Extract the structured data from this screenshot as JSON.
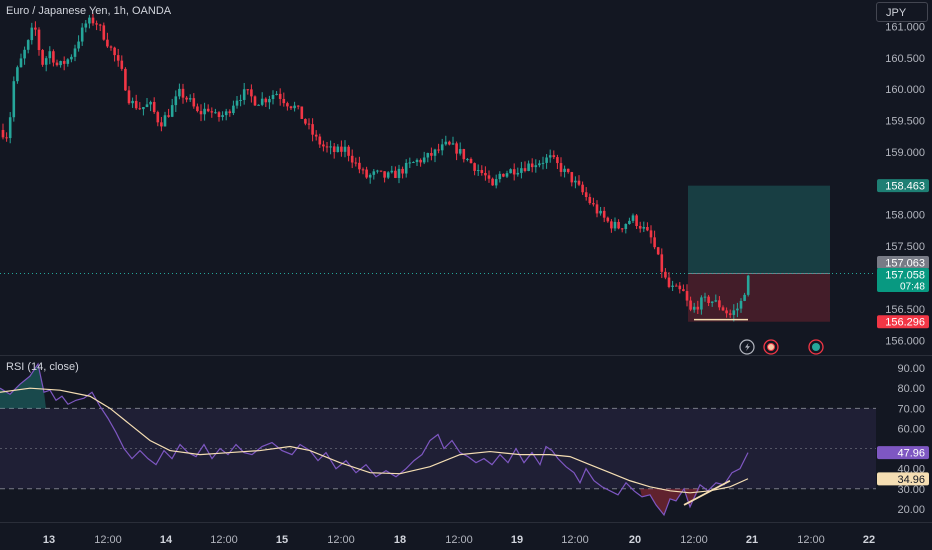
{
  "header": {
    "symbol_title": "Euro / Japanese Yen, 1h, OANDA",
    "currency": "JPY"
  },
  "rsi_panel": {
    "title": "RSI (14, close)"
  },
  "colors": {
    "background": "#131722",
    "up": "#26a69a",
    "down": "#f23645",
    "rsi_line": "#7e57c2",
    "rsi_ma": "#f5deb3",
    "grid_text": "#b2b5be"
  },
  "chart_data": [
    {
      "type": "candlestick",
      "title": "Euro / Japanese Yen, 1h, OANDA",
      "ylim": [
        155.75,
        161.42
      ],
      "y_ticks": [
        "161.000",
        "160.500",
        "160.000",
        "159.500",
        "159.000",
        "158.000",
        "157.500",
        "156.500",
        "156.000"
      ],
      "x_ticks": [
        "13",
        "12:00",
        "14",
        "12:00",
        "15",
        "12:00",
        "18",
        "12:00",
        "19",
        "12:00",
        "20",
        "12:00",
        "21",
        "12:00",
        "22"
      ],
      "anchors": [
        [
          0,
          159.35
        ],
        [
          8,
          159.25
        ],
        [
          14,
          160.15
        ],
        [
          22,
          160.5
        ],
        [
          30,
          160.8
        ],
        [
          34,
          161.05
        ],
        [
          42,
          160.4
        ],
        [
          50,
          160.6
        ],
        [
          58,
          160.35
        ],
        [
          70,
          160.5
        ],
        [
          80,
          160.85
        ],
        [
          86,
          161.05
        ],
        [
          95,
          161.1
        ],
        [
          104,
          160.85
        ],
        [
          114,
          160.55
        ],
        [
          122,
          160.25
        ],
        [
          130,
          159.8
        ],
        [
          140,
          159.7
        ],
        [
          150,
          159.75
        ],
        [
          160,
          159.45
        ],
        [
          170,
          159.65
        ],
        [
          180,
          159.95
        ],
        [
          190,
          159.8
        ],
        [
          198,
          159.6
        ],
        [
          208,
          159.7
        ],
        [
          216,
          159.55
        ],
        [
          226,
          159.6
        ],
        [
          236,
          159.85
        ],
        [
          246,
          159.95
        ],
        [
          256,
          159.8
        ],
        [
          266,
          159.85
        ],
        [
          276,
          159.95
        ],
        [
          286,
          159.8
        ],
        [
          296,
          159.7
        ],
        [
          306,
          159.45
        ],
        [
          316,
          159.2
        ],
        [
          326,
          159.05
        ],
        [
          336,
          159.0
        ],
        [
          346,
          159.05
        ],
        [
          356,
          158.8
        ],
        [
          366,
          158.6
        ],
        [
          376,
          158.65
        ],
        [
          386,
          158.6
        ],
        [
          396,
          158.65
        ],
        [
          406,
          158.75
        ],
        [
          416,
          158.85
        ],
        [
          426,
          158.9
        ],
        [
          436,
          159.0
        ],
        [
          446,
          159.1
        ],
        [
          456,
          159.05
        ],
        [
          466,
          158.9
        ],
        [
          476,
          158.75
        ],
        [
          486,
          158.6
        ],
        [
          492,
          158.4
        ],
        [
          500,
          158.65
        ],
        [
          510,
          158.7
        ],
        [
          520,
          158.75
        ],
        [
          530,
          158.8
        ],
        [
          540,
          158.85
        ],
        [
          550,
          158.9
        ],
        [
          560,
          158.75
        ],
        [
          570,
          158.6
        ],
        [
          580,
          158.4
        ],
        [
          590,
          158.2
        ],
        [
          600,
          158.0
        ],
        [
          610,
          157.85
        ],
        [
          620,
          157.8
        ],
        [
          632,
          157.95
        ],
        [
          642,
          157.8
        ],
        [
          652,
          157.6
        ],
        [
          660,
          157.2
        ],
        [
          668,
          156.85
        ],
        [
          676,
          156.8
        ],
        [
          684,
          156.75
        ],
        [
          690,
          156.45
        ],
        [
          700,
          156.6
        ],
        [
          710,
          156.65
        ],
        [
          720,
          156.55
        ],
        [
          730,
          156.4
        ],
        [
          740,
          156.55
        ],
        [
          749,
          157.03
        ]
      ],
      "current_price": "157.063",
      "last_price": "157.058",
      "countdown": "07:48",
      "position": {
        "target": "158.463",
        "entry": 157.063,
        "stop": "156.296"
      }
    },
    {
      "type": "line",
      "title": "RSI (14, close)",
      "ylim": [
        13.5,
        96
      ],
      "bands": [
        30,
        70
      ],
      "y_ticks": [
        "90.00",
        "80.00",
        "70.00",
        "60.00",
        "40.00",
        "30.00",
        "20.00"
      ],
      "series": [
        {
          "name": "RSI",
          "last": "47.96",
          "anchors": [
            [
              0,
              80
            ],
            [
              10,
              77
            ],
            [
              20,
              82
            ],
            [
              30,
              86
            ],
            [
              38,
              92
            ],
            [
              44,
              78
            ],
            [
              50,
              79
            ],
            [
              56,
              74
            ],
            [
              62,
              76
            ],
            [
              68,
              72
            ],
            [
              76,
              74
            ],
            [
              84,
              75
            ],
            [
              92,
              78
            ],
            [
              100,
              71
            ],
            [
              108,
              65
            ],
            [
              116,
              58
            ],
            [
              124,
              50
            ],
            [
              132,
              45
            ],
            [
              140,
              49
            ],
            [
              148,
              45
            ],
            [
              156,
              42
            ],
            [
              164,
              49
            ],
            [
              172,
              45
            ],
            [
              180,
              52
            ],
            [
              188,
              48
            ],
            [
              196,
              46
            ],
            [
              204,
              52
            ],
            [
              212,
              45
            ],
            [
              220,
              50
            ],
            [
              228,
              47
            ],
            [
              236,
              52
            ],
            [
              244,
              48
            ],
            [
              252,
              47
            ],
            [
              262,
              51
            ],
            [
              272,
              53
            ],
            [
              282,
              49
            ],
            [
              292,
              47
            ],
            [
              300,
              52
            ],
            [
              310,
              49
            ],
            [
              318,
              44
            ],
            [
              326,
              48
            ],
            [
              336,
              40
            ],
            [
              346,
              44
            ],
            [
              356,
              38
            ],
            [
              366,
              42
            ],
            [
              376,
              36
            ],
            [
              386,
              39
            ],
            [
              396,
              36
            ],
            [
              406,
              40
            ],
            [
              414,
              44
            ],
            [
              422,
              47
            ],
            [
              430,
              54
            ],
            [
              438,
              57
            ],
            [
              444,
              50
            ],
            [
              452,
              54
            ],
            [
              460,
              48
            ],
            [
              468,
              46
            ],
            [
              476,
              43
            ],
            [
              484,
              45
            ],
            [
              492,
              42
            ],
            [
              500,
              47
            ],
            [
              508,
              43
            ],
            [
              516,
              50
            ],
            [
              524,
              43
            ],
            [
              532,
              48
            ],
            [
              540,
              42
            ],
            [
              546,
              51
            ],
            [
              552,
              49
            ],
            [
              558,
              45
            ],
            [
              566,
              41
            ],
            [
              574,
              38
            ],
            [
              580,
              33
            ],
            [
              586,
              40
            ],
            [
              594,
              34
            ],
            [
              602,
              31
            ],
            [
              610,
              29
            ],
            [
              618,
              27
            ],
            [
              626,
              33
            ],
            [
              634,
              29
            ],
            [
              642,
              26
            ],
            [
              650,
              27
            ],
            [
              656,
              22
            ],
            [
              664,
              17
            ],
            [
              670,
              25
            ],
            [
              676,
              24
            ],
            [
              684,
              30
            ],
            [
              690,
              21
            ],
            [
              700,
              32
            ],
            [
              708,
              29
            ],
            [
              716,
              33
            ],
            [
              724,
              32
            ],
            [
              732,
              38
            ],
            [
              740,
              40
            ],
            [
              748,
              48
            ]
          ]
        },
        {
          "name": "RSI-based MA",
          "last": "34.96",
          "anchors": [
            [
              0,
              78
            ],
            [
              30,
              80
            ],
            [
              60,
              79
            ],
            [
              90,
              76
            ],
            [
              110,
              70
            ],
            [
              130,
              62
            ],
            [
              150,
              54
            ],
            [
              170,
              49
            ],
            [
              200,
              47
            ],
            [
              230,
              48
            ],
            [
              260,
              49
            ],
            [
              290,
              51
            ],
            [
              310,
              49
            ],
            [
              340,
              43
            ],
            [
              370,
              38
            ],
            [
              400,
              37.5
            ],
            [
              430,
              41
            ],
            [
              460,
              47
            ],
            [
              490,
              48.5
            ],
            [
              520,
              47
            ],
            [
              550,
              47
            ],
            [
              570,
              46
            ],
            [
              590,
              42
            ],
            [
              610,
              38
            ],
            [
              630,
              34
            ],
            [
              650,
              31
            ],
            [
              670,
              29
            ],
            [
              690,
              28
            ],
            [
              710,
              29
            ],
            [
              730,
              31
            ],
            [
              748,
              35
            ]
          ]
        },
        {
          "name": "RSI trendline",
          "anchors": [
            [
              684,
              22
            ],
            [
              730,
              34
            ]
          ]
        }
      ]
    }
  ]
}
